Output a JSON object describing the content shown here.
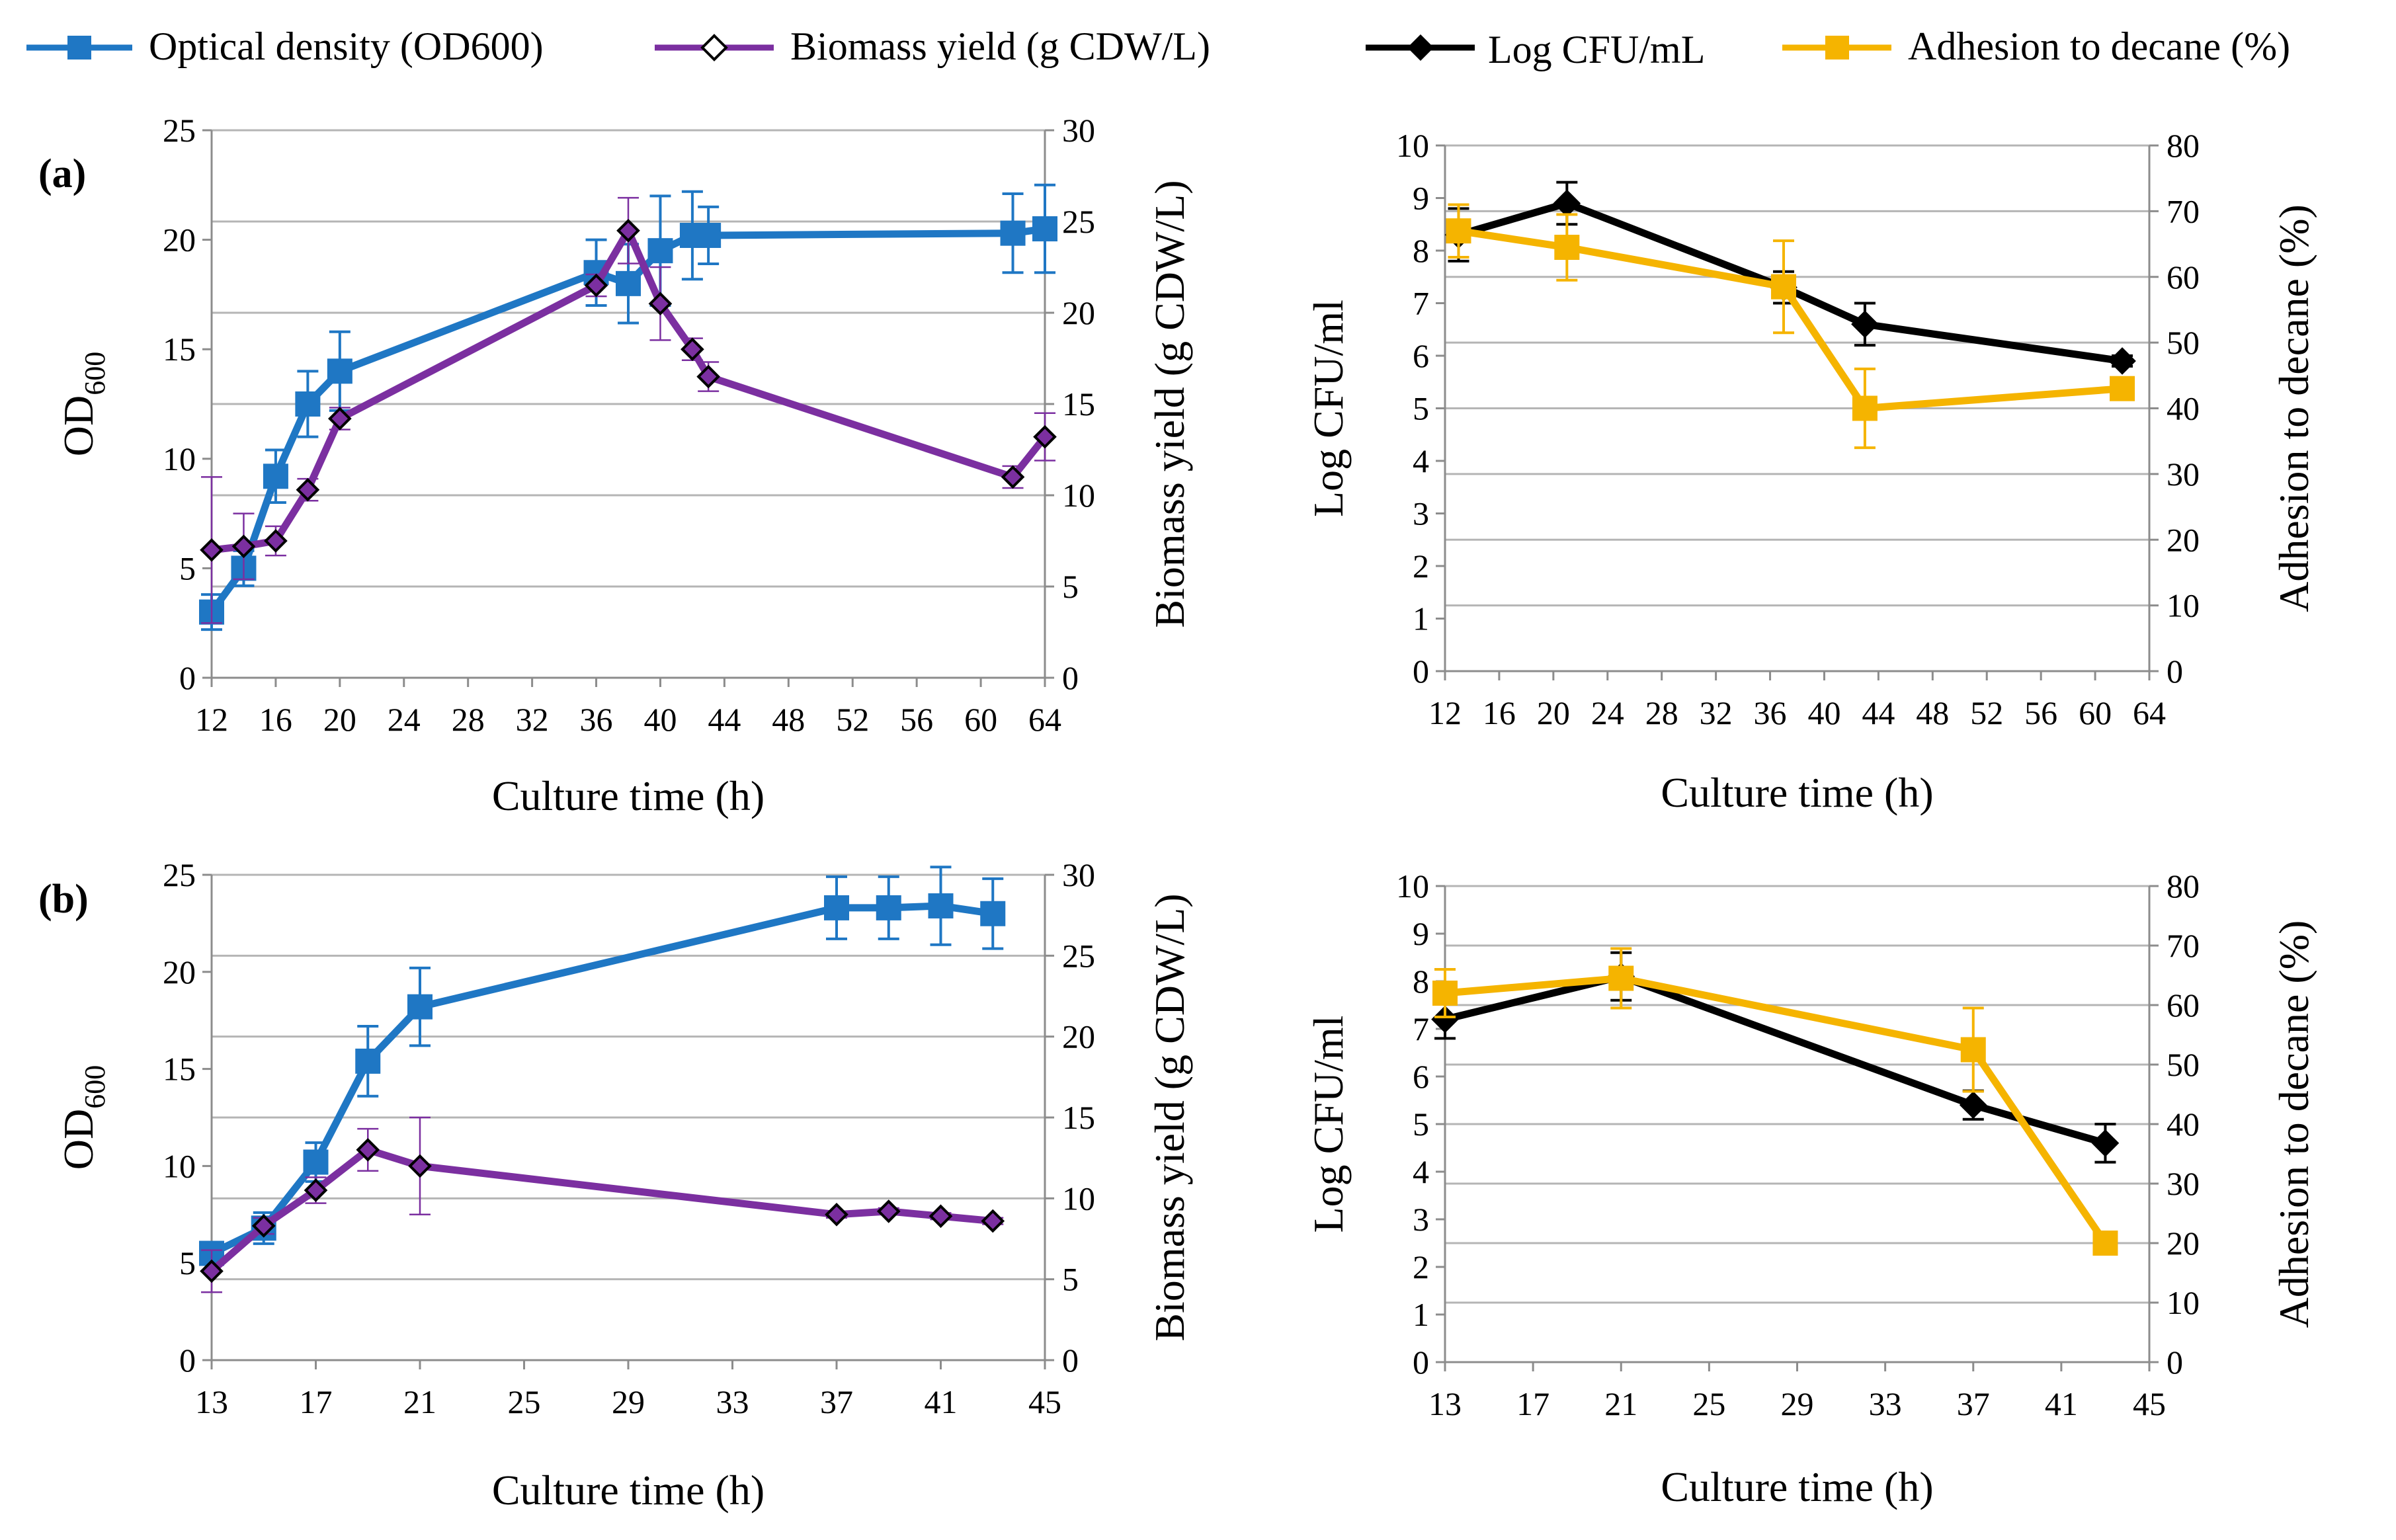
{
  "legend": [
    {
      "label": "Optical density (OD600)",
      "color": "#1f77c4",
      "marker": "square"
    },
    {
      "label": "Biomass yield (g CDW/L)",
      "color": "#7b2fa0",
      "marker": "diamond"
    },
    {
      "label": "Log CFU/mL",
      "color": "#000000",
      "marker": "diamond"
    },
    {
      "label": "Adhesion to decane (%)",
      "color": "#f5b400",
      "marker": "square"
    }
  ],
  "panel_labels": {
    "a": "(a)",
    "b": "(b)"
  },
  "chart_data": [
    {
      "id": "a_left",
      "panel": "a",
      "type": "line",
      "xlabel": "Culture time (h)",
      "ylabel_main": "OD",
      "ylabel_sub": "600",
      "y2label": "Biomass yield (g CDW/L)",
      "xlim": [
        12,
        64
      ],
      "xticks": [
        12,
        16,
        20,
        24,
        28,
        32,
        36,
        40,
        44,
        48,
        52,
        56,
        60,
        64
      ],
      "ylim": [
        0,
        25
      ],
      "yticks": [
        0,
        5,
        10,
        15,
        20,
        25
      ],
      "y2lim": [
        0,
        30
      ],
      "y2ticks": [
        0,
        5,
        10,
        15,
        20,
        25,
        30
      ],
      "series": [
        {
          "name": "Optical density (OD600)",
          "axis": "left",
          "color": "#1f77c4",
          "marker": "square",
          "x": [
            12,
            14,
            16,
            18,
            20,
            36,
            38,
            40,
            42,
            43,
            62,
            64
          ],
          "y": [
            3.0,
            5.0,
            9.2,
            12.5,
            14.0,
            18.5,
            18.0,
            19.5,
            20.2,
            20.2,
            20.3,
            20.5
          ],
          "err": [
            0.8,
            0.8,
            1.2,
            1.5,
            1.8,
            1.5,
            1.8,
            2.5,
            2.0,
            1.3,
            1.8,
            2.0
          ]
        },
        {
          "name": "Biomass yield (g CDW/L)",
          "axis": "right",
          "color": "#7b2fa0",
          "marker": "diamond",
          "x": [
            12,
            14,
            16,
            18,
            20,
            36,
            38,
            40,
            42,
            43,
            62,
            64
          ],
          "y": [
            7.0,
            7.2,
            7.5,
            10.3,
            14.2,
            21.5,
            24.5,
            20.5,
            18.0,
            16.5,
            11.0,
            13.2
          ],
          "err": [
            4.0,
            1.8,
            0.8,
            0.6,
            0.6,
            0.6,
            1.8,
            2.0,
            0.6,
            0.8,
            0.6,
            1.3
          ]
        }
      ]
    },
    {
      "id": "a_right",
      "panel": "a",
      "type": "line",
      "xlabel": "Culture time (h)",
      "ylabel_main": "Log CFU/ml",
      "ylabel_sub": "",
      "y2label": "Adhesion to decane (%)",
      "xlim": [
        12,
        64
      ],
      "xticks": [
        12,
        16,
        20,
        24,
        28,
        32,
        36,
        40,
        44,
        48,
        52,
        56,
        60,
        64
      ],
      "ylim": [
        0,
        10
      ],
      "yticks": [
        0,
        1,
        2,
        3,
        4,
        5,
        6,
        7,
        8,
        9,
        10
      ],
      "y2lim": [
        0,
        80
      ],
      "y2ticks": [
        0,
        10,
        20,
        30,
        40,
        50,
        60,
        70,
        80
      ],
      "series": [
        {
          "name": "Log CFU/mL",
          "axis": "left",
          "color": "#000000",
          "marker": "diamond",
          "x": [
            13,
            21,
            37,
            43,
            62
          ],
          "y": [
            8.3,
            8.9,
            7.3,
            6.6,
            5.9
          ],
          "err": [
            0.5,
            0.4,
            0.3,
            0.4,
            0.1
          ]
        },
        {
          "name": "Adhesion to decane (%)",
          "axis": "right",
          "color": "#f5b400",
          "marker": "square",
          "x": [
            13,
            21,
            37,
            43,
            62
          ],
          "y": [
            67,
            64.5,
            58.5,
            40,
            43
          ],
          "err": [
            4,
            5,
            7,
            6,
            1
          ]
        }
      ]
    },
    {
      "id": "b_left",
      "panel": "b",
      "type": "line",
      "xlabel": "Culture time (h)",
      "ylabel_main": "OD",
      "ylabel_sub": "600",
      "y2label": "Biomass yield (g CDW/L)",
      "xlim": [
        13,
        45
      ],
      "xticks": [
        13,
        17,
        21,
        25,
        29,
        33,
        37,
        41,
        45
      ],
      "ylim": [
        0,
        25
      ],
      "yticks": [
        0,
        5,
        10,
        15,
        20,
        25
      ],
      "y2lim": [
        0,
        30
      ],
      "y2ticks": [
        0,
        5,
        10,
        15,
        20,
        25,
        30
      ],
      "series": [
        {
          "name": "Optical density (OD600)",
          "axis": "left",
          "color": "#1f77c4",
          "marker": "square",
          "x": [
            13,
            15,
            17,
            19,
            21,
            37,
            39,
            41,
            43
          ],
          "y": [
            5.5,
            6.8,
            10.2,
            15.4,
            18.2,
            23.3,
            23.3,
            23.4,
            23.0
          ],
          "err": [
            0.4,
            0.8,
            1.0,
            1.8,
            2.0,
            1.6,
            1.6,
            2.0,
            1.8
          ]
        },
        {
          "name": "Biomass yield (g CDW/L)",
          "axis": "right",
          "color": "#7b2fa0",
          "marker": "diamond",
          "x": [
            13,
            15,
            17,
            19,
            21,
            37,
            39,
            41,
            43
          ],
          "y": [
            5.5,
            8.3,
            10.5,
            13.0,
            12.0,
            9.0,
            9.2,
            8.9,
            8.6
          ],
          "err": [
            1.3,
            0.5,
            0.8,
            1.3,
            3.0,
            0.2,
            0.2,
            0.2,
            0.2
          ]
        }
      ]
    },
    {
      "id": "b_right",
      "panel": "b",
      "type": "line",
      "xlabel": "Culture time (h)",
      "ylabel_main": "Log CFU/ml",
      "ylabel_sub": "",
      "y2label": "Adhesion to decane (%)",
      "xlim": [
        13,
        45
      ],
      "xticks": [
        13,
        17,
        21,
        25,
        29,
        33,
        37,
        41,
        45
      ],
      "ylim": [
        0,
        10
      ],
      "yticks": [
        0,
        1,
        2,
        3,
        4,
        5,
        6,
        7,
        8,
        9,
        10
      ],
      "y2lim": [
        0,
        80
      ],
      "y2ticks": [
        0,
        10,
        20,
        30,
        40,
        50,
        60,
        70,
        80
      ],
      "series": [
        {
          "name": "Log CFU/mL",
          "axis": "left",
          "color": "#000000",
          "marker": "diamond",
          "x": [
            13,
            21,
            37,
            43
          ],
          "y": [
            7.2,
            8.1,
            5.4,
            4.6
          ],
          "err": [
            0.4,
            0.5,
            0.3,
            0.4
          ]
        },
        {
          "name": "Adhesion to decane (%)",
          "axis": "right",
          "color": "#f5b400",
          "marker": "square",
          "x": [
            13,
            21,
            37,
            43
          ],
          "y": [
            62,
            64.5,
            52.5,
            20
          ],
          "err": [
            4,
            5,
            7,
            1
          ]
        }
      ]
    }
  ]
}
